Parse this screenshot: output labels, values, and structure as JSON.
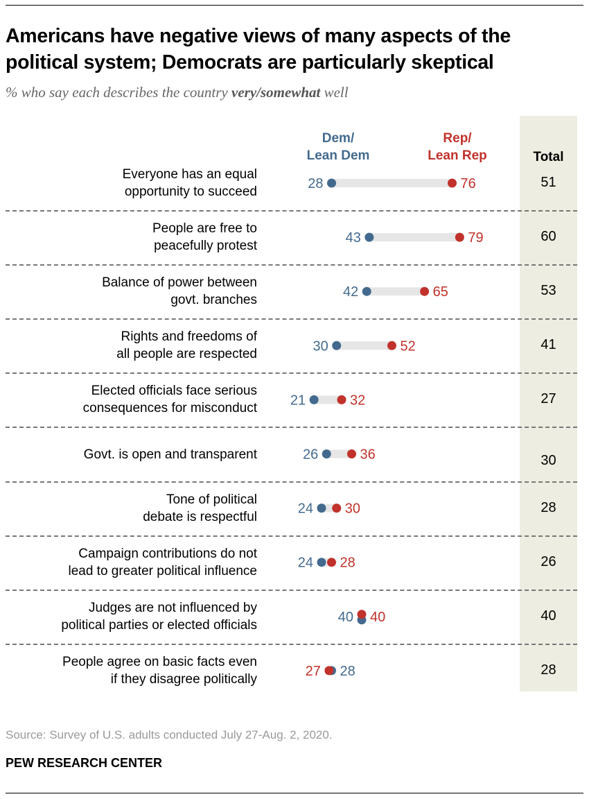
{
  "header": {
    "title": "Americans have negative views of many aspects of the political system; Democrats are particularly skeptical",
    "subtitle_pre": "% who say each describes the country ",
    "subtitle_bold": "very/somewhat",
    "subtitle_post": " well"
  },
  "colors": {
    "dem": "#436a8e",
    "rep": "#c0322b",
    "bar": "#e6e6e6",
    "total_bg": "#edede1"
  },
  "chart_data": {
    "type": "dot-range",
    "title": "Americans have negative views of many aspects of the political system; Democrats are particularly skeptical",
    "subtitle": "% who say each describes the country very/somewhat well",
    "legend": {
      "dem": "Dem/ Lean Dem",
      "rep": "Rep/ Lean Rep",
      "total": "Total"
    },
    "legend_labels": {
      "dem_line1": "Dem/",
      "dem_line2": "Lean Dem",
      "rep_line1": "Rep/",
      "rep_line2": "Lean Rep",
      "total": "Total"
    },
    "categories": [
      "Everyone has an equal opportunity to succeed",
      "People are free to peacefully protest",
      "Balance of power between govt. branches",
      "Rights and freedoms of all people are respected",
      "Elected officials face serious consequences for misconduct",
      "Govt. is open and transparent",
      "Tone of political debate is respectful",
      "Campaign contributions do not lead to greater political influence",
      "Judges are not influenced by political parties or elected officials",
      "People agree on basic facts even if they disagree politically"
    ],
    "series": [
      {
        "name": "Dem/Lean Dem",
        "values": [
          28,
          43,
          42,
          30,
          21,
          26,
          24,
          24,
          40,
          28
        ]
      },
      {
        "name": "Rep/Lean Rep",
        "values": [
          76,
          79,
          65,
          52,
          32,
          36,
          30,
          28,
          40,
          27
        ]
      },
      {
        "name": "Total",
        "values": [
          51,
          60,
          53,
          41,
          27,
          30,
          28,
          26,
          40,
          28
        ]
      }
    ],
    "rows": [
      {
        "line1": "Everyone has an equal",
        "line2": "opportunity to succeed",
        "dem": 28,
        "rep": 76,
        "total": 51
      },
      {
        "line1": "People are free to",
        "line2": "peacefully protest",
        "dem": 43,
        "rep": 79,
        "total": 60
      },
      {
        "line1": "Balance of power between",
        "line2": "govt. branches",
        "dem": 42,
        "rep": 65,
        "total": 53
      },
      {
        "line1": "Rights and freedoms of",
        "line2": "all people are respected",
        "dem": 30,
        "rep": 52,
        "total": 41
      },
      {
        "line1": "Elected officials face serious",
        "line2": "consequences for misconduct",
        "dem": 21,
        "rep": 32,
        "total": 27
      },
      {
        "line1": "Govt. is open and transparent",
        "line2": "",
        "dem": 26,
        "rep": 36,
        "total": 30
      },
      {
        "line1": "Tone of political",
        "line2": "debate is respectful",
        "dem": 24,
        "rep": 30,
        "total": 28
      },
      {
        "line1": "Campaign contributions do not",
        "line2": "lead to greater political influence",
        "dem": 24,
        "rep": 28,
        "total": 26
      },
      {
        "line1": "Judges are not influenced by",
        "line2": "political parties or elected officials",
        "dem": 40,
        "rep": 40,
        "total": 40
      },
      {
        "line1": "People agree on basic facts even",
        "line2": "if they disagree politically",
        "dem": 28,
        "rep": 27,
        "total": 28
      }
    ],
    "xlim": [
      0,
      100
    ],
    "grid": false
  },
  "footer": {
    "source": "Source: Survey of U.S. adults conducted July 27-Aug. 2, 2020.",
    "brand": "PEW RESEARCH CENTER"
  }
}
